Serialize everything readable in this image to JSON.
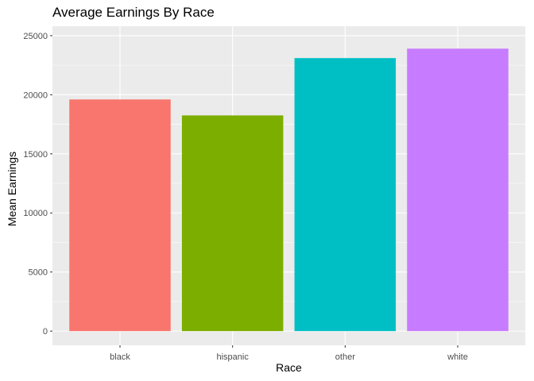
{
  "chart_data": {
    "type": "bar",
    "title": "Average Earnings By Race",
    "xlabel": "Race",
    "ylabel": "Mean Earnings",
    "categories": [
      "black",
      "hispanic",
      "other",
      "white"
    ],
    "values": [
      19600,
      18250,
      23100,
      23900
    ],
    "colors": [
      "#F8766D",
      "#7CAE00",
      "#00BFC4",
      "#C77CFF"
    ],
    "ylim": [
      -1200,
      25800
    ],
    "yticks": [
      0,
      5000,
      10000,
      15000,
      20000,
      25000
    ],
    "grid": true,
    "panel_background": "#EBEBEB",
    "legend": "none"
  }
}
